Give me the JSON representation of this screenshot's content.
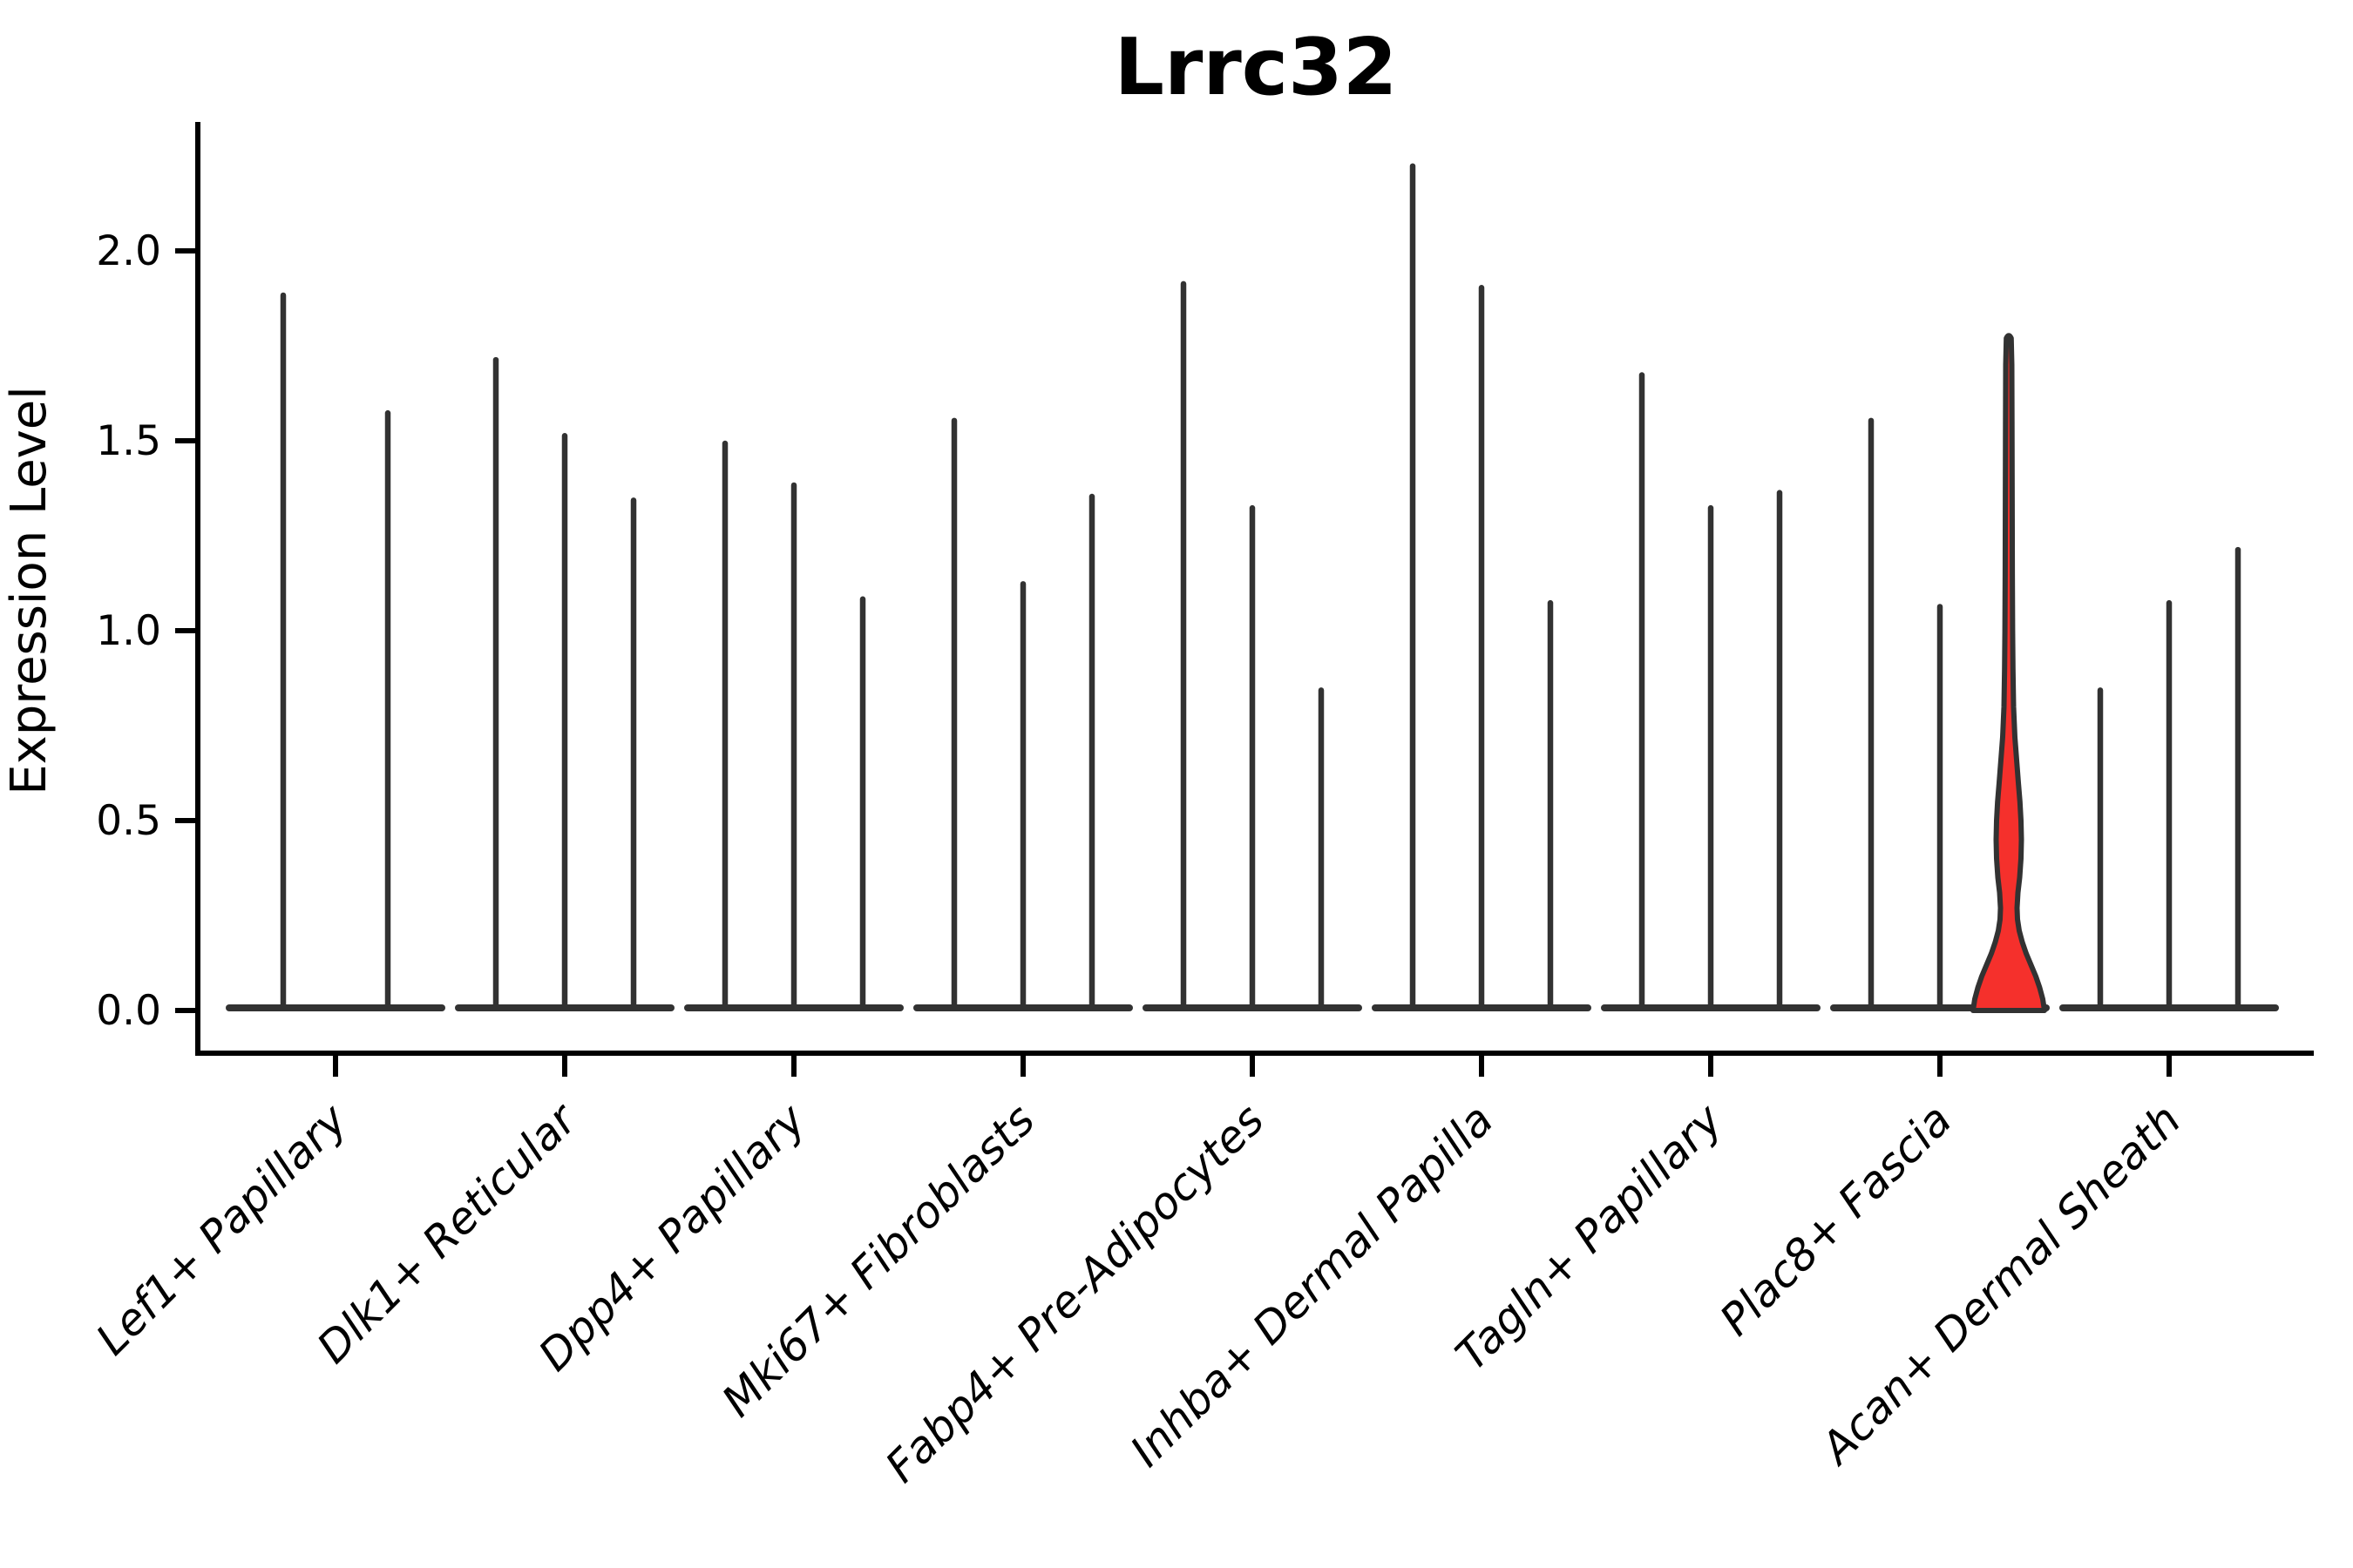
{
  "chart_data": {
    "type": "violin",
    "title": "Lrrc32",
    "ylabel": "Expression Level",
    "xlabel": "",
    "background_color": "#ffffff",
    "axis_color": "#000000",
    "violin_color": "#323232",
    "highlight_fill_color": "#f5302c",
    "grid": false,
    "legend": false,
    "ylim": [
      -0.12,
      2.34
    ],
    "yticks": [
      0.0,
      0.5,
      1.0,
      1.5,
      2.0
    ],
    "ytick_labels": [
      "0.0",
      "0.5",
      "1.0",
      "1.5",
      "2.0"
    ],
    "categories": [
      "Lef1+ Papillary",
      "Dlk1+ Reticular",
      "Dpp4+ Papillary",
      "Mki67+ Fibroblasts",
      "Fabp4+ Pre-Adipocytes",
      "Inhba+ Dermal Papilla",
      "Tagln+ Papillary",
      "Plac8+ Fascia",
      "Acan+ Dermal Sheath"
    ],
    "groups": [
      {
        "category": "Lef1+ Papillary",
        "violin_max": [
          1.89,
          1.58
        ],
        "highlight_index": -1
      },
      {
        "category": "Dlk1+ Reticular",
        "violin_max": [
          1.72,
          1.52,
          1.35
        ],
        "highlight_index": -1
      },
      {
        "category": "Dpp4+ Papillary",
        "violin_max": [
          1.5,
          1.39,
          1.09
        ],
        "highlight_index": -1
      },
      {
        "category": "Mki67+ Fibroblasts",
        "violin_max": [
          1.56,
          1.13,
          1.36
        ],
        "highlight_index": -1
      },
      {
        "category": "Fabp4+ Pre-Adipocytes",
        "violin_max": [
          1.92,
          1.33,
          0.85
        ],
        "highlight_index": -1
      },
      {
        "category": "Inhba+ Dermal Papilla",
        "violin_max": [
          2.23,
          1.91,
          1.08
        ],
        "highlight_index": -1
      },
      {
        "category": "Tagln+ Papillary",
        "violin_max": [
          1.68,
          1.33,
          1.37
        ],
        "highlight_index": -1
      },
      {
        "category": "Plac8+ Fascia",
        "violin_max": [
          1.56,
          1.07,
          1.77
        ],
        "highlight_index": 2
      },
      {
        "category": "Acan+ Dermal Sheath",
        "violin_max": [
          0.85,
          1.08,
          1.22
        ],
        "highlight_index": -1
      }
    ],
    "highlight_violin": {
      "category": "Plac8+ Fascia",
      "violin_index": 2,
      "max_expression": 1.77,
      "profile_value_halfwidth": [
        [
          0.0,
          41.0
        ],
        [
          0.03,
          39.0
        ],
        [
          0.06,
          35.5
        ],
        [
          0.09,
          31.0
        ],
        [
          0.12,
          25.5
        ],
        [
          0.15,
          20.0
        ],
        [
          0.18,
          15.5
        ],
        [
          0.21,
          12.0
        ],
        [
          0.24,
          10.0
        ],
        [
          0.27,
          9.5
        ],
        [
          0.31,
          10.5
        ],
        [
          0.35,
          12.5
        ],
        [
          0.4,
          14.0
        ],
        [
          0.45,
          14.5
        ],
        [
          0.5,
          14.0
        ],
        [
          0.55,
          12.8
        ],
        [
          0.6,
          11.0
        ],
        [
          0.66,
          9.0
        ],
        [
          0.72,
          7.0
        ],
        [
          0.8,
          5.5
        ],
        [
          0.9,
          4.8
        ],
        [
          1.0,
          4.4
        ],
        [
          1.15,
          4.1
        ],
        [
          1.35,
          3.9
        ],
        [
          1.55,
          3.7
        ],
        [
          1.7,
          3.5
        ],
        [
          1.77,
          2.8
        ]
      ]
    }
  }
}
